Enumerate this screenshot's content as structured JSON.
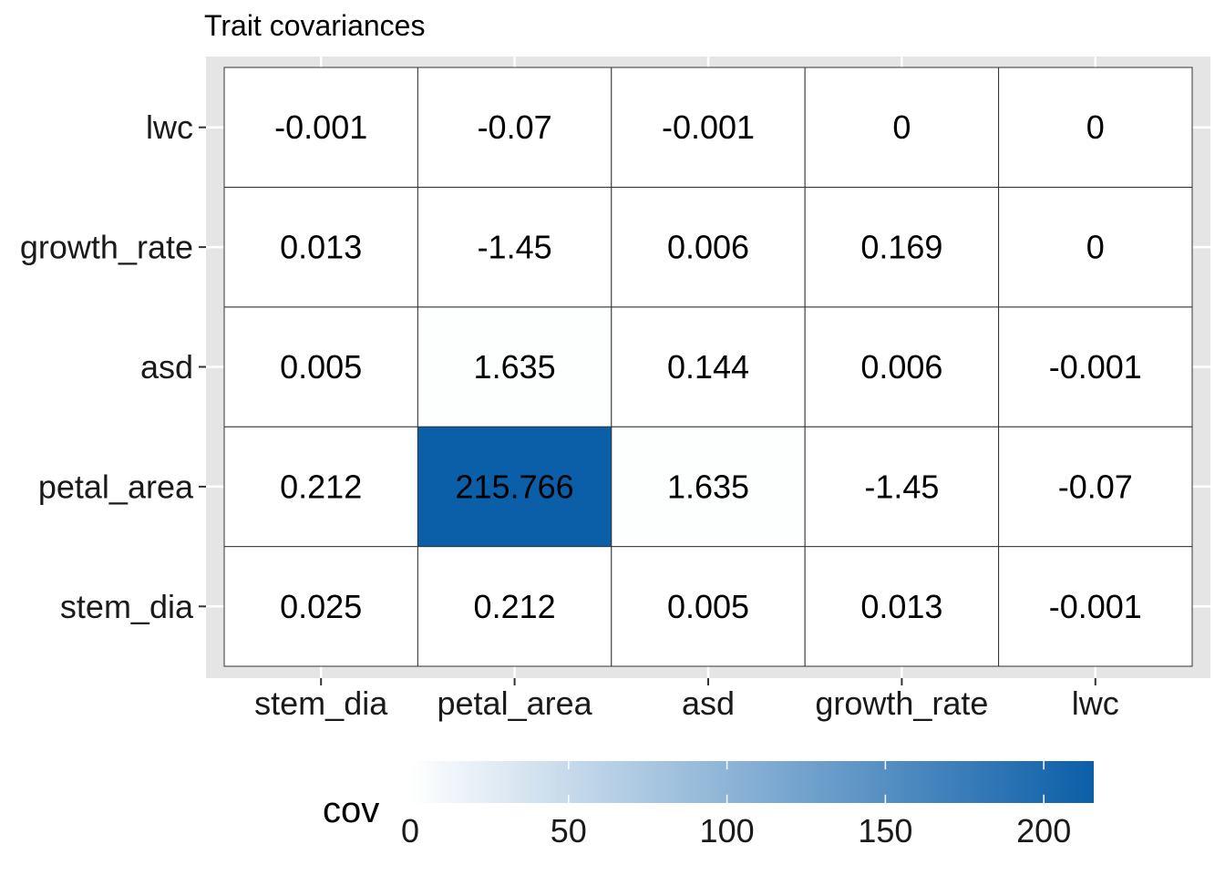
{
  "chart_data": {
    "type": "heatmap",
    "title": "Trait covariances",
    "x_categories": [
      "stem_dia",
      "petal_area",
      "asd",
      "growth_rate",
      "lwc"
    ],
    "y_categories": [
      "stem_dia",
      "petal_area",
      "asd",
      "growth_rate",
      "lwc"
    ],
    "cells": [
      {
        "x": "stem_dia",
        "y": "stem_dia",
        "value": 0.025,
        "label": "0.025"
      },
      {
        "x": "petal_area",
        "y": "stem_dia",
        "value": 0.212,
        "label": "0.212"
      },
      {
        "x": "asd",
        "y": "stem_dia",
        "value": 0.005,
        "label": "0.005"
      },
      {
        "x": "growth_rate",
        "y": "stem_dia",
        "value": 0.013,
        "label": "0.013"
      },
      {
        "x": "lwc",
        "y": "stem_dia",
        "value": -0.001,
        "label": "-0.001"
      },
      {
        "x": "stem_dia",
        "y": "petal_area",
        "value": 0.212,
        "label": "0.212"
      },
      {
        "x": "petal_area",
        "y": "petal_area",
        "value": 215.766,
        "label": "215.766"
      },
      {
        "x": "asd",
        "y": "petal_area",
        "value": 1.635,
        "label": "1.635"
      },
      {
        "x": "growth_rate",
        "y": "petal_area",
        "value": -1.45,
        "label": "-1.45"
      },
      {
        "x": "lwc",
        "y": "petal_area",
        "value": -0.07,
        "label": "-0.07"
      },
      {
        "x": "stem_dia",
        "y": "asd",
        "value": 0.005,
        "label": "0.005"
      },
      {
        "x": "petal_area",
        "y": "asd",
        "value": 1.635,
        "label": "1.635"
      },
      {
        "x": "asd",
        "y": "asd",
        "value": 0.144,
        "label": "0.144"
      },
      {
        "x": "growth_rate",
        "y": "asd",
        "value": 0.006,
        "label": "0.006"
      },
      {
        "x": "lwc",
        "y": "asd",
        "value": -0.001,
        "label": "-0.001"
      },
      {
        "x": "stem_dia",
        "y": "growth_rate",
        "value": 0.013,
        "label": "0.013"
      },
      {
        "x": "petal_area",
        "y": "growth_rate",
        "value": -1.45,
        "label": "-1.45"
      },
      {
        "x": "asd",
        "y": "growth_rate",
        "value": 0.006,
        "label": "0.006"
      },
      {
        "x": "growth_rate",
        "y": "growth_rate",
        "value": 0.169,
        "label": "0.169"
      },
      {
        "x": "lwc",
        "y": "growth_rate",
        "value": 0,
        "label": "0"
      },
      {
        "x": "stem_dia",
        "y": "lwc",
        "value": -0.001,
        "label": "-0.001"
      },
      {
        "x": "petal_area",
        "y": "lwc",
        "value": -0.07,
        "label": "-0.07"
      },
      {
        "x": "asd",
        "y": "lwc",
        "value": -0.001,
        "label": "-0.001"
      },
      {
        "x": "growth_rate",
        "y": "lwc",
        "value": 0,
        "label": "0"
      },
      {
        "x": "lwc",
        "y": "lwc",
        "value": 0,
        "label": "0"
      }
    ],
    "legend": {
      "title": "cov",
      "position": "bottom",
      "range": [
        0,
        215.766
      ],
      "ticks": [
        0,
        50,
        100,
        150,
        200
      ]
    },
    "colors": {
      "low": "#ffffff",
      "high": "#0b5ea8",
      "panel_background": "#e5e5e5",
      "grid": "#ffffff",
      "cell_border": "#333333"
    },
    "grid": true
  }
}
